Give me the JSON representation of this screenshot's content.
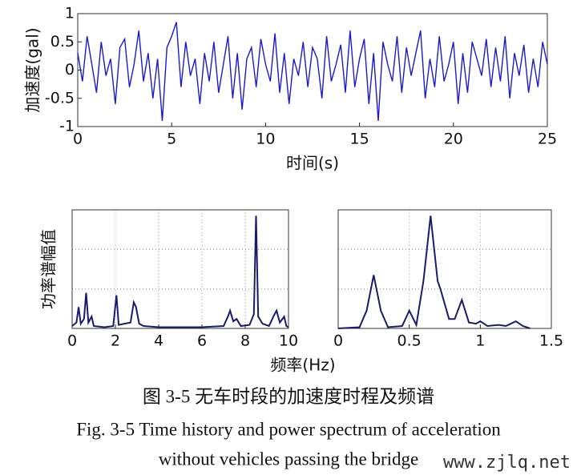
{
  "chart_data": [
    {
      "type": "line",
      "ylabel": "加速度(gal)",
      "xlabel": "时间(s)",
      "color": "#1a1ad0",
      "xlim": [
        0,
        25
      ],
      "ylim": [
        -1,
        1
      ],
      "xticks": [
        0,
        5,
        10,
        15,
        20,
        25
      ],
      "yticks": [
        1,
        0.5,
        0,
        -0.5,
        -1
      ],
      "grid": false,
      "x": [
        0,
        0.25,
        0.5,
        0.75,
        1,
        1.25,
        1.5,
        1.75,
        2,
        2.25,
        2.5,
        2.75,
        3,
        3.25,
        3.5,
        3.75,
        4,
        4.25,
        4.5,
        4.75,
        5,
        5.25,
        5.5,
        5.75,
        6,
        6.25,
        6.5,
        6.75,
        7,
        7.25,
        7.5,
        7.75,
        8,
        8.25,
        8.5,
        8.75,
        9,
        9.25,
        9.5,
        9.75,
        10,
        10.25,
        10.5,
        10.75,
        11,
        11.25,
        11.5,
        11.75,
        12,
        12.25,
        12.5,
        12.75,
        13,
        13.25,
        13.5,
        13.75,
        14,
        14.25,
        14.5,
        14.75,
        15,
        15.25,
        15.5,
        15.75,
        16,
        16.25,
        16.5,
        16.75,
        17,
        17.25,
        17.5,
        17.75,
        18,
        18.25,
        18.5,
        18.75,
        19,
        19.25,
        19.5,
        19.75,
        20,
        20.25,
        20.5,
        20.75,
        21,
        21.25,
        21.5,
        21.75,
        22,
        22.25,
        22.5,
        22.75,
        23,
        23.25,
        23.5,
        23.75,
        24,
        24.25,
        24.5,
        24.75,
        25
      ],
      "values": [
        0.3,
        -0.2,
        0.6,
        0.1,
        -0.4,
        0.5,
        -0.1,
        0.2,
        -0.6,
        0.4,
        0.55,
        -0.3,
        0.1,
        0.7,
        -0.2,
        0.3,
        -0.5,
        0.2,
        -0.9,
        0.4,
        0.6,
        0.85,
        -0.3,
        0.5,
        -0.1,
        0.2,
        -0.6,
        0.3,
        -0.2,
        0.5,
        -0.4,
        0.1,
        0.6,
        -0.5,
        0.3,
        -0.7,
        0.2,
        0.4,
        -0.3,
        0.55,
        0.1,
        -0.2,
        0.65,
        -0.4,
        0.3,
        -0.6,
        0.2,
        -0.1,
        0.5,
        -0.3,
        0.4,
        0.2,
        -0.5,
        0.6,
        -0.2,
        0.1,
        0.45,
        -0.4,
        0.7,
        -0.3,
        0.2,
        0.55,
        -0.6,
        0.3,
        -0.9,
        0.5,
        0.1,
        -0.2,
        0.6,
        -0.4,
        0.4,
        -0.1,
        0.3,
        0.7,
        -0.5,
        0.2,
        -0.3,
        0.6,
        -0.2,
        0.1,
        0.5,
        -0.6,
        0.3,
        -0.4,
        0.5,
        0.2,
        -0.1,
        0.55,
        -0.3,
        0.4,
        -0.2,
        0.6,
        -0.5,
        0.3,
        -0.1,
        0.45,
        -0.4,
        0.2,
        -0.3,
        0.5,
        0.1
      ]
    },
    {
      "type": "line",
      "ylabel": "功率谱幅值",
      "xlabel": "频率(Hz)",
      "color": "#1a1a70",
      "xlim": [
        0,
        10
      ],
      "ylim": [
        0,
        1
      ],
      "xticks": [
        0,
        2,
        4,
        6,
        8,
        10
      ],
      "grid": true,
      "x": [
        0,
        0.2,
        0.3,
        0.4,
        0.55,
        0.65,
        0.75,
        0.9,
        1.0,
        1.5,
        1.9,
        2.05,
        2.15,
        2.7,
        2.85,
        2.95,
        3.1,
        3.3,
        4,
        5,
        6,
        7,
        7.2,
        7.3,
        7.45,
        7.6,
        7.8,
        8.2,
        8.4,
        8.5,
        8.6,
        8.8,
        9.1,
        9.3,
        9.45,
        9.6,
        9.8,
        9.9,
        10
      ],
      "values": [
        0.02,
        0.05,
        0.18,
        0.04,
        0.08,
        0.3,
        0.05,
        0.1,
        0.02,
        0.01,
        0.02,
        0.28,
        0.03,
        0.05,
        0.22,
        0.18,
        0.04,
        0.02,
        0.01,
        0.01,
        0.01,
        0.02,
        0.1,
        0.15,
        0.06,
        0.08,
        0.02,
        0.03,
        0.12,
        0.95,
        0.1,
        0.04,
        0.02,
        0.1,
        0.15,
        0.05,
        0.1,
        0.02,
        0.01
      ]
    },
    {
      "type": "line",
      "color": "#1a1a70",
      "xlim": [
        0,
        1.5
      ],
      "ylim": [
        0,
        1
      ],
      "xticks": [
        0,
        0.5,
        1,
        1.5
      ],
      "grid": true,
      "x": [
        0,
        0.15,
        0.2,
        0.25,
        0.3,
        0.35,
        0.45,
        0.5,
        0.55,
        0.6,
        0.65,
        0.7,
        0.72,
        0.78,
        0.82,
        0.87,
        0.92,
        0.97,
        1.0,
        1.05,
        1.13,
        1.18,
        1.25,
        1.3,
        1.35
      ],
      "values": [
        0,
        0.01,
        0.15,
        0.45,
        0.15,
        0.01,
        0.02,
        0.15,
        0.03,
        0.4,
        0.95,
        0.4,
        0.33,
        0.08,
        0.08,
        0.24,
        0.05,
        0.04,
        0.06,
        0.02,
        0.03,
        0.02,
        0.06,
        0.02,
        0
      ]
    }
  ],
  "caption": [
    "图 3-5 无车时段的加速度时程及频谱",
    "Fig. 3-5 Time history and power spectrum of acceleration",
    "without vehicles passing the bridge"
  ],
  "watermark": "www.zjlq.net"
}
